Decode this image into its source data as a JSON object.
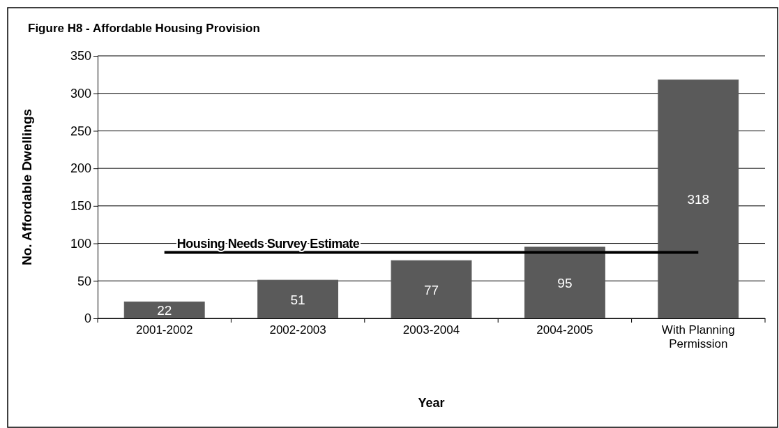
{
  "chart_data": {
    "type": "bar",
    "title": "Figure H8 - Affordable Housing Provision",
    "xlabel": "Year",
    "ylabel": "No. Affordable Dwellings",
    "categories": [
      "2001-2002",
      "2002-2003",
      "2003-2004",
      "2004-2005",
      "With Planning Permission"
    ],
    "values": [
      22,
      51,
      77,
      95,
      318
    ],
    "color": "#5a5a5a",
    "data_labels": true,
    "ylim": [
      0,
      350
    ],
    "yticks": [
      0,
      50,
      100,
      150,
      200,
      250,
      300,
      350
    ],
    "grid": "y",
    "ref_lines": [
      {
        "axis": "y",
        "value": 88,
        "label": "Housing Needs Survey Estimate",
        "color": "#000000"
      }
    ]
  }
}
